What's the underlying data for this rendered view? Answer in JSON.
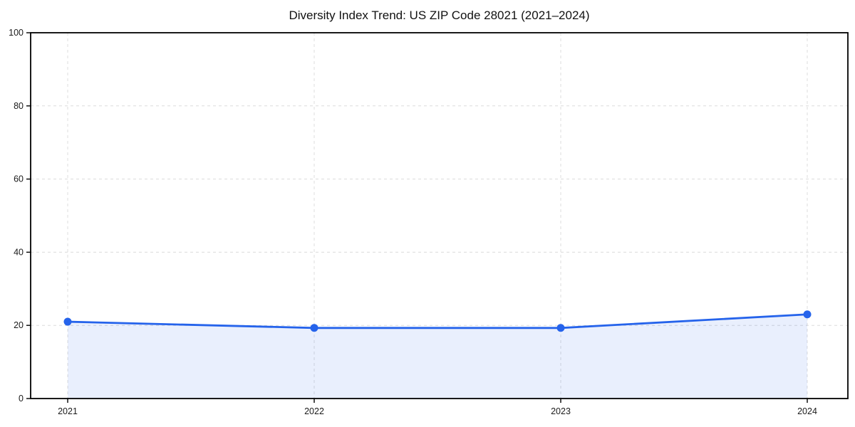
{
  "chart_data": {
    "type": "line",
    "title": "Diversity Index Trend: US ZIP Code 28021 (2021–2024)",
    "categories": [
      "2021",
      "2022",
      "2023",
      "2024"
    ],
    "series": [
      {
        "name": "Diversity Index",
        "values": [
          21,
          19.3,
          19.3,
          23
        ]
      }
    ],
    "xlabel": "",
    "ylabel": "",
    "ylim": [
      0,
      100
    ],
    "y_ticks": [
      0,
      20,
      40,
      60,
      80,
      100
    ],
    "grid": true,
    "grid_style": "dashed",
    "legend_position": "none",
    "area_fill": true,
    "style": {
      "line_color": "#2563eb",
      "marker_color": "#2563eb",
      "area_fill_color": "#2563eb",
      "area_fill_opacity": 0.1,
      "grid_color": "#dcdcdc",
      "spine_color": "#000000",
      "tick_color": "#000000",
      "text_color": "#1a1a1a",
      "background_color": "#ffffff"
    }
  }
}
